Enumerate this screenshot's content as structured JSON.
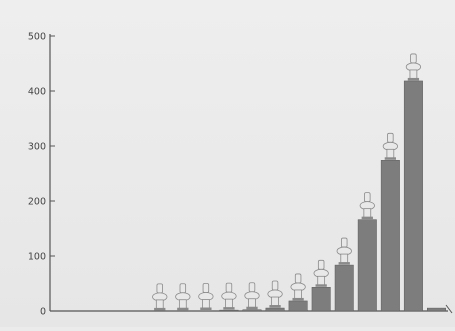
{
  "chart_data": {
    "type": "bar",
    "title": "",
    "subtitle": "",
    "xlabel": "",
    "ylabel": "",
    "y_ticks": [
      "0",
      "100",
      "200",
      "300",
      "400",
      "500"
    ],
    "ylim": [
      0,
      500
    ],
    "grid": false,
    "legend": "none",
    "categories": [
      "",
      "",
      "",
      "",
      "",
      "",
      "",
      "",
      "",
      "",
      "",
      "",
      "",
      "",
      "",
      "",
      ""
    ],
    "values": [
      0,
      0,
      0,
      0,
      0.2,
      0.5,
      0.9,
      1.6,
      2.3,
      5.4,
      18.3,
      43.1,
      83.5,
      166.1,
      274.0,
      418.3,
      5.3
    ],
    "value_labels": [
      "",
      "",
      "",
      "",
      "",
      "",
      "",
      "",
      "",
      "",
      "",
      "",
      "",
      "",
      "",
      "",
      ""
    ],
    "colors": {
      "bar": "#7d7d7d",
      "bar_dark": "#5a5a5a",
      "axis": "#555555",
      "text": "#444444",
      "icon_body": "#e8e8e8",
      "icon_stroke": "#8a8a8a",
      "label_bg": "#ffffff"
    }
  }
}
